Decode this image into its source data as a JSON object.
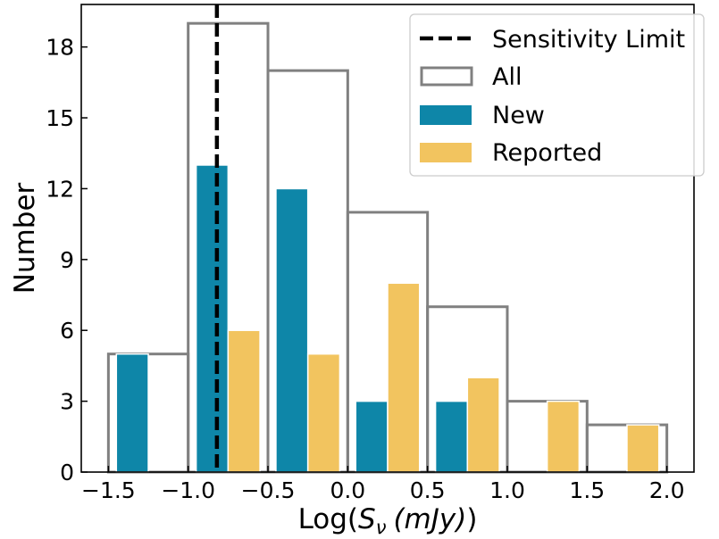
{
  "chart_data": {
    "type": "bar",
    "xlabel": "Log(",
    "xlabel_sym": "S",
    "xlabel_sub": "ν",
    "xlabel_unit": "(mJy)",
    "xlabel_close": ")",
    "ylabel": "Number",
    "xlim": [
      -1.67,
      2.17
    ],
    "ylim": [
      0,
      19.8
    ],
    "xticks": [
      -1.5,
      -1.0,
      -0.5,
      0.0,
      0.5,
      1.0,
      1.5,
      2.0
    ],
    "xtick_labels": [
      "−1.5",
      "−1.0",
      "−0.5",
      "0.0",
      "0.5",
      "1.0",
      "1.5",
      "2.0"
    ],
    "yticks": [
      0,
      3,
      6,
      9,
      12,
      15,
      18
    ],
    "ytick_labels": [
      "0",
      "3",
      "6",
      "9",
      "12",
      "15",
      "18"
    ],
    "bins": [
      [
        -1.5,
        -1.0
      ],
      [
        -1.0,
        -0.5
      ],
      [
        -0.5,
        0.0
      ],
      [
        0.0,
        0.5
      ],
      [
        0.5,
        1.0
      ],
      [
        1.0,
        1.5
      ],
      [
        1.5,
        2.0
      ]
    ],
    "series": [
      {
        "name": "All",
        "style": "outline",
        "color": "#808080",
        "values": [
          5,
          19,
          17,
          11,
          7,
          3,
          2
        ]
      },
      {
        "name": "New",
        "style": "filled",
        "color": "#0e86a8",
        "values": [
          5,
          13,
          12,
          3,
          3,
          0,
          0
        ]
      },
      {
        "name": "Reported",
        "style": "filled",
        "color": "#f2c45f",
        "values": [
          0,
          6,
          5,
          8,
          4,
          3,
          2
        ]
      }
    ],
    "vline": {
      "name": "Sensitivity Limit",
      "x": -0.82,
      "color": "#000000",
      "style": "dashed"
    },
    "legend": {
      "placement": "top-right",
      "entries": [
        "Sensitivity Limit",
        "All",
        "New",
        "Reported"
      ]
    },
    "grid": false
  }
}
